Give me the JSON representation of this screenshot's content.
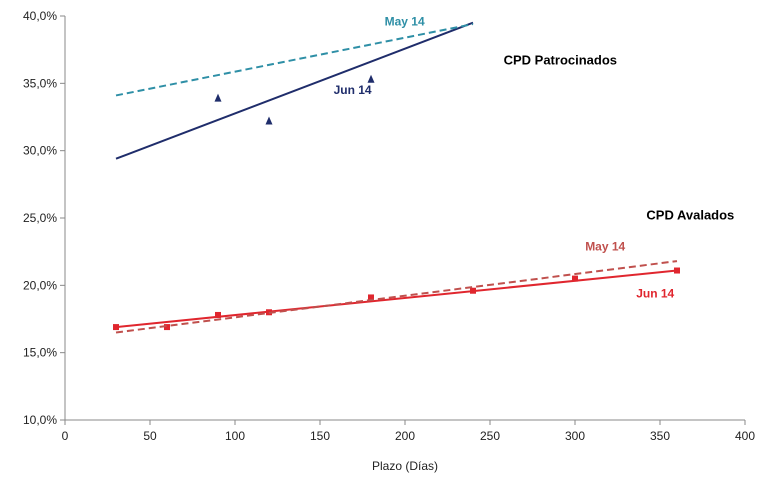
{
  "chart_data": {
    "type": "scatter",
    "title": "",
    "xlabel": "Plazo (Días)",
    "ylabel": "",
    "xlim": [
      0,
      400
    ],
    "ylim": [
      10,
      40
    ],
    "x_ticks": [
      0,
      50,
      100,
      150,
      200,
      250,
      300,
      350,
      400
    ],
    "x_tick_labels": [
      "0",
      "50",
      "100",
      "150",
      "200",
      "250",
      "300",
      "350",
      "400"
    ],
    "y_ticks": [
      10,
      15,
      20,
      25,
      30,
      35,
      40
    ],
    "y_tick_labels": [
      "10,0%",
      "15,0%",
      "20,0%",
      "25,0%",
      "30,0%",
      "35,0%",
      "40,0%"
    ],
    "grid": false,
    "colors": {
      "patrocinados_jun": "#1f2d6b",
      "patrocinados_may": "#2e8fa6",
      "avalados_jun": "#e0262e",
      "avalados_may": "#c0504d",
      "axis": "#888888"
    },
    "series": [
      {
        "group": "CPD Patrocinados",
        "kind": "points",
        "marker": "triangle",
        "color": "#1f2d6b",
        "x": [
          90,
          120,
          180
        ],
        "y": [
          33.9,
          32.2,
          35.3
        ]
      },
      {
        "name": "Jun 14",
        "group": "CPD Patrocinados",
        "kind": "trendline",
        "style": "solid",
        "color": "#1f2d6b",
        "x": [
          30,
          240
        ],
        "y": [
          29.4,
          39.5
        ]
      },
      {
        "name": "May 14",
        "group": "CPD Patrocinados",
        "kind": "trendline",
        "style": "dashed",
        "color": "#2e8fa6",
        "x": [
          30,
          240
        ],
        "y": [
          34.1,
          39.4
        ]
      },
      {
        "group": "CPD Avalados",
        "kind": "points",
        "marker": "square",
        "color": "#e0262e",
        "x": [
          30,
          60,
          90,
          120,
          180,
          240,
          300,
          360
        ],
        "y": [
          16.9,
          16.9,
          17.8,
          18.0,
          19.1,
          19.6,
          20.5,
          21.1
        ]
      },
      {
        "name": "Jun 14",
        "group": "CPD Avalados",
        "kind": "trendline",
        "style": "solid",
        "color": "#e0262e",
        "x": [
          30,
          360
        ],
        "y": [
          16.9,
          21.1
        ]
      },
      {
        "name": "May 14",
        "group": "CPD Avalados",
        "kind": "trendline",
        "style": "dashed",
        "color": "#c0504d",
        "x": [
          30,
          360
        ],
        "y": [
          16.5,
          21.8
        ]
      }
    ],
    "annotations": [
      {
        "text": "CPD Patrocinados",
        "x": 258,
        "y": 36.4,
        "color": "#000000",
        "style": "bold-large"
      },
      {
        "text": "May 14",
        "x": 188,
        "y": 39.3,
        "color": "#2e8fa6",
        "style": "bold"
      },
      {
        "text": "Jun 14",
        "x": 158,
        "y": 34.2,
        "color": "#1f2d6b",
        "style": "bold"
      },
      {
        "text": "CPD Avalados",
        "x": 342,
        "y": 24.9,
        "color": "#000000",
        "style": "bold-large"
      },
      {
        "text": "May 14",
        "x": 306,
        "y": 22.6,
        "color": "#c0504d",
        "style": "bold"
      },
      {
        "text": "Jun 14",
        "x": 336,
        "y": 19.1,
        "color": "#e0262e",
        "style": "bold"
      }
    ]
  }
}
